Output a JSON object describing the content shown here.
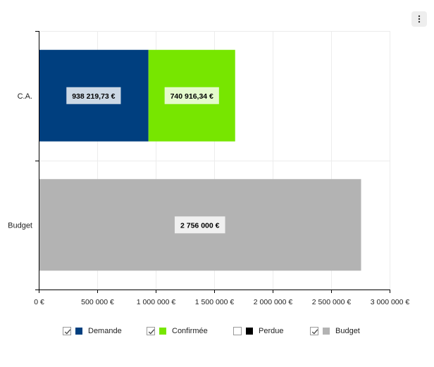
{
  "menu": {
    "icon": "kebab-menu-icon"
  },
  "chart_data": {
    "type": "bar",
    "orientation": "horizontal",
    "stacked": true,
    "categories": [
      "C.A.",
      "Budget"
    ],
    "series": [
      {
        "name": "Demande",
        "color": "#003f7f",
        "values": [
          938219.73,
          null
        ],
        "labels": [
          "938 219,73 €",
          ""
        ]
      },
      {
        "name": "Confirmée",
        "color": "#77e600",
        "values": [
          740916.34,
          null
        ],
        "labels": [
          "740 916,34 €",
          ""
        ]
      },
      {
        "name": "Perdue",
        "color": "#000000",
        "values": [
          null,
          null
        ],
        "labels": [
          "",
          ""
        ]
      },
      {
        "name": "Budget",
        "color": "#b3b3b3",
        "values": [
          null,
          2756000
        ],
        "labels": [
          "",
          "2 756 000 €"
        ]
      }
    ],
    "xlim": [
      0,
      3000000
    ],
    "xticks": [
      0,
      500000,
      1000000,
      1500000,
      2000000,
      2500000,
      3000000
    ],
    "xtick_labels": [
      "0 €",
      "500 000 €",
      "1 000 000 €",
      "1 500 000 €",
      "2 000 000 €",
      "2 500 000 €",
      "3 000 000 €"
    ],
    "grid": true,
    "legend_position": "bottom"
  },
  "legend": {
    "items": [
      {
        "name": "Demande",
        "checked": true,
        "color": "#003f7f"
      },
      {
        "name": "Confirmée",
        "checked": true,
        "color": "#77e600"
      },
      {
        "name": "Perdue",
        "checked": false,
        "color": "#000000"
      },
      {
        "name": "Budget",
        "checked": true,
        "color": "#b3b3b3"
      }
    ]
  }
}
